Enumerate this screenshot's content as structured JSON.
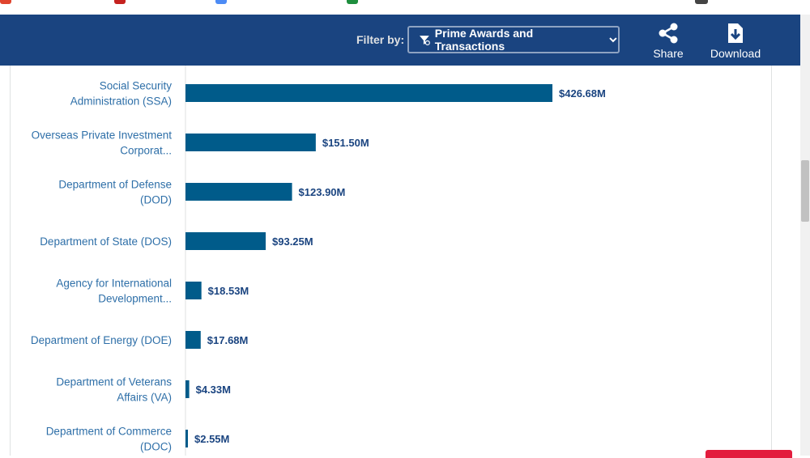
{
  "toolbar": {
    "filter_label": "Filter by:",
    "filter_value": "Prime Awards and Transactions",
    "share_label": "Share",
    "download_label": "Download"
  },
  "colors": {
    "header_bg": "#1a4480",
    "bar": "#005b8a",
    "agency_label": "#2e6fa8",
    "value_label": "#1a4480"
  },
  "chart_data": {
    "type": "bar",
    "orientation": "horizontal",
    "categories": [
      [
        "Social Security",
        "Administration (SSA)"
      ],
      [
        "Overseas Private Investment",
        "Corporat..."
      ],
      [
        "Department of Defense",
        "(DOD)"
      ],
      [
        "Department of State (DOS)"
      ],
      [
        "Agency for International",
        "Development..."
      ],
      [
        "Department of Energy (DOE)"
      ],
      [
        "Department of Veterans",
        "Affairs (VA)"
      ],
      [
        "Department of Commerce",
        "(DOC)"
      ]
    ],
    "values": [
      426.68,
      151.5,
      123.9,
      93.25,
      18.53,
      17.68,
      4.33,
      2.55
    ],
    "value_labels": [
      "$426.68M",
      "$151.50M",
      "$123.90M",
      "$93.25M",
      "$18.53M",
      "$17.68M",
      "$4.33M",
      "$2.55M"
    ],
    "unit": "millions USD"
  }
}
